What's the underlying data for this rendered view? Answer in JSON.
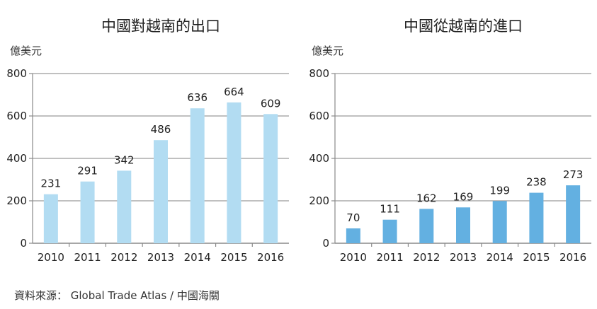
{
  "chart_data": [
    {
      "type": "bar",
      "title": "中國對越南的出口",
      "ylabel": "億美元",
      "xlabel": "",
      "categories": [
        "2010",
        "2011",
        "2012",
        "2013",
        "2014",
        "2015",
        "2016"
      ],
      "values": [
        231,
        291,
        342,
        486,
        636,
        664,
        609
      ],
      "data_labels": [
        "231",
        "291",
        "342",
        "486",
        "636",
        "664",
        "609"
      ],
      "ylim": [
        0,
        800
      ],
      "yticks": [
        0,
        200,
        400,
        600,
        800
      ],
      "ytick_labels": [
        "0",
        "200",
        "400",
        "600",
        "800"
      ],
      "grid": true,
      "bar_color": "#b2dcf2"
    },
    {
      "type": "bar",
      "title": "中國從越南的進口",
      "ylabel": "億美元",
      "xlabel": "",
      "categories": [
        "2010",
        "2011",
        "2012",
        "2013",
        "2014",
        "2015",
        "2016"
      ],
      "values": [
        70,
        111,
        162,
        169,
        199,
        238,
        273
      ],
      "data_labels": [
        "70",
        "111",
        "162",
        "169",
        "199",
        "238",
        "273"
      ],
      "ylim": [
        0,
        800
      ],
      "yticks": [
        0,
        200,
        400,
        600,
        800
      ],
      "ytick_labels": [
        "0",
        "200",
        "400",
        "600",
        "800"
      ],
      "grid": true,
      "bar_color": "#63b0e1"
    }
  ],
  "source": "資料來源： Global Trade Atlas / 中國海關",
  "colors": {
    "grid": "#9a9a9a",
    "axis": "#8a8a8a",
    "text": "#222222"
  }
}
